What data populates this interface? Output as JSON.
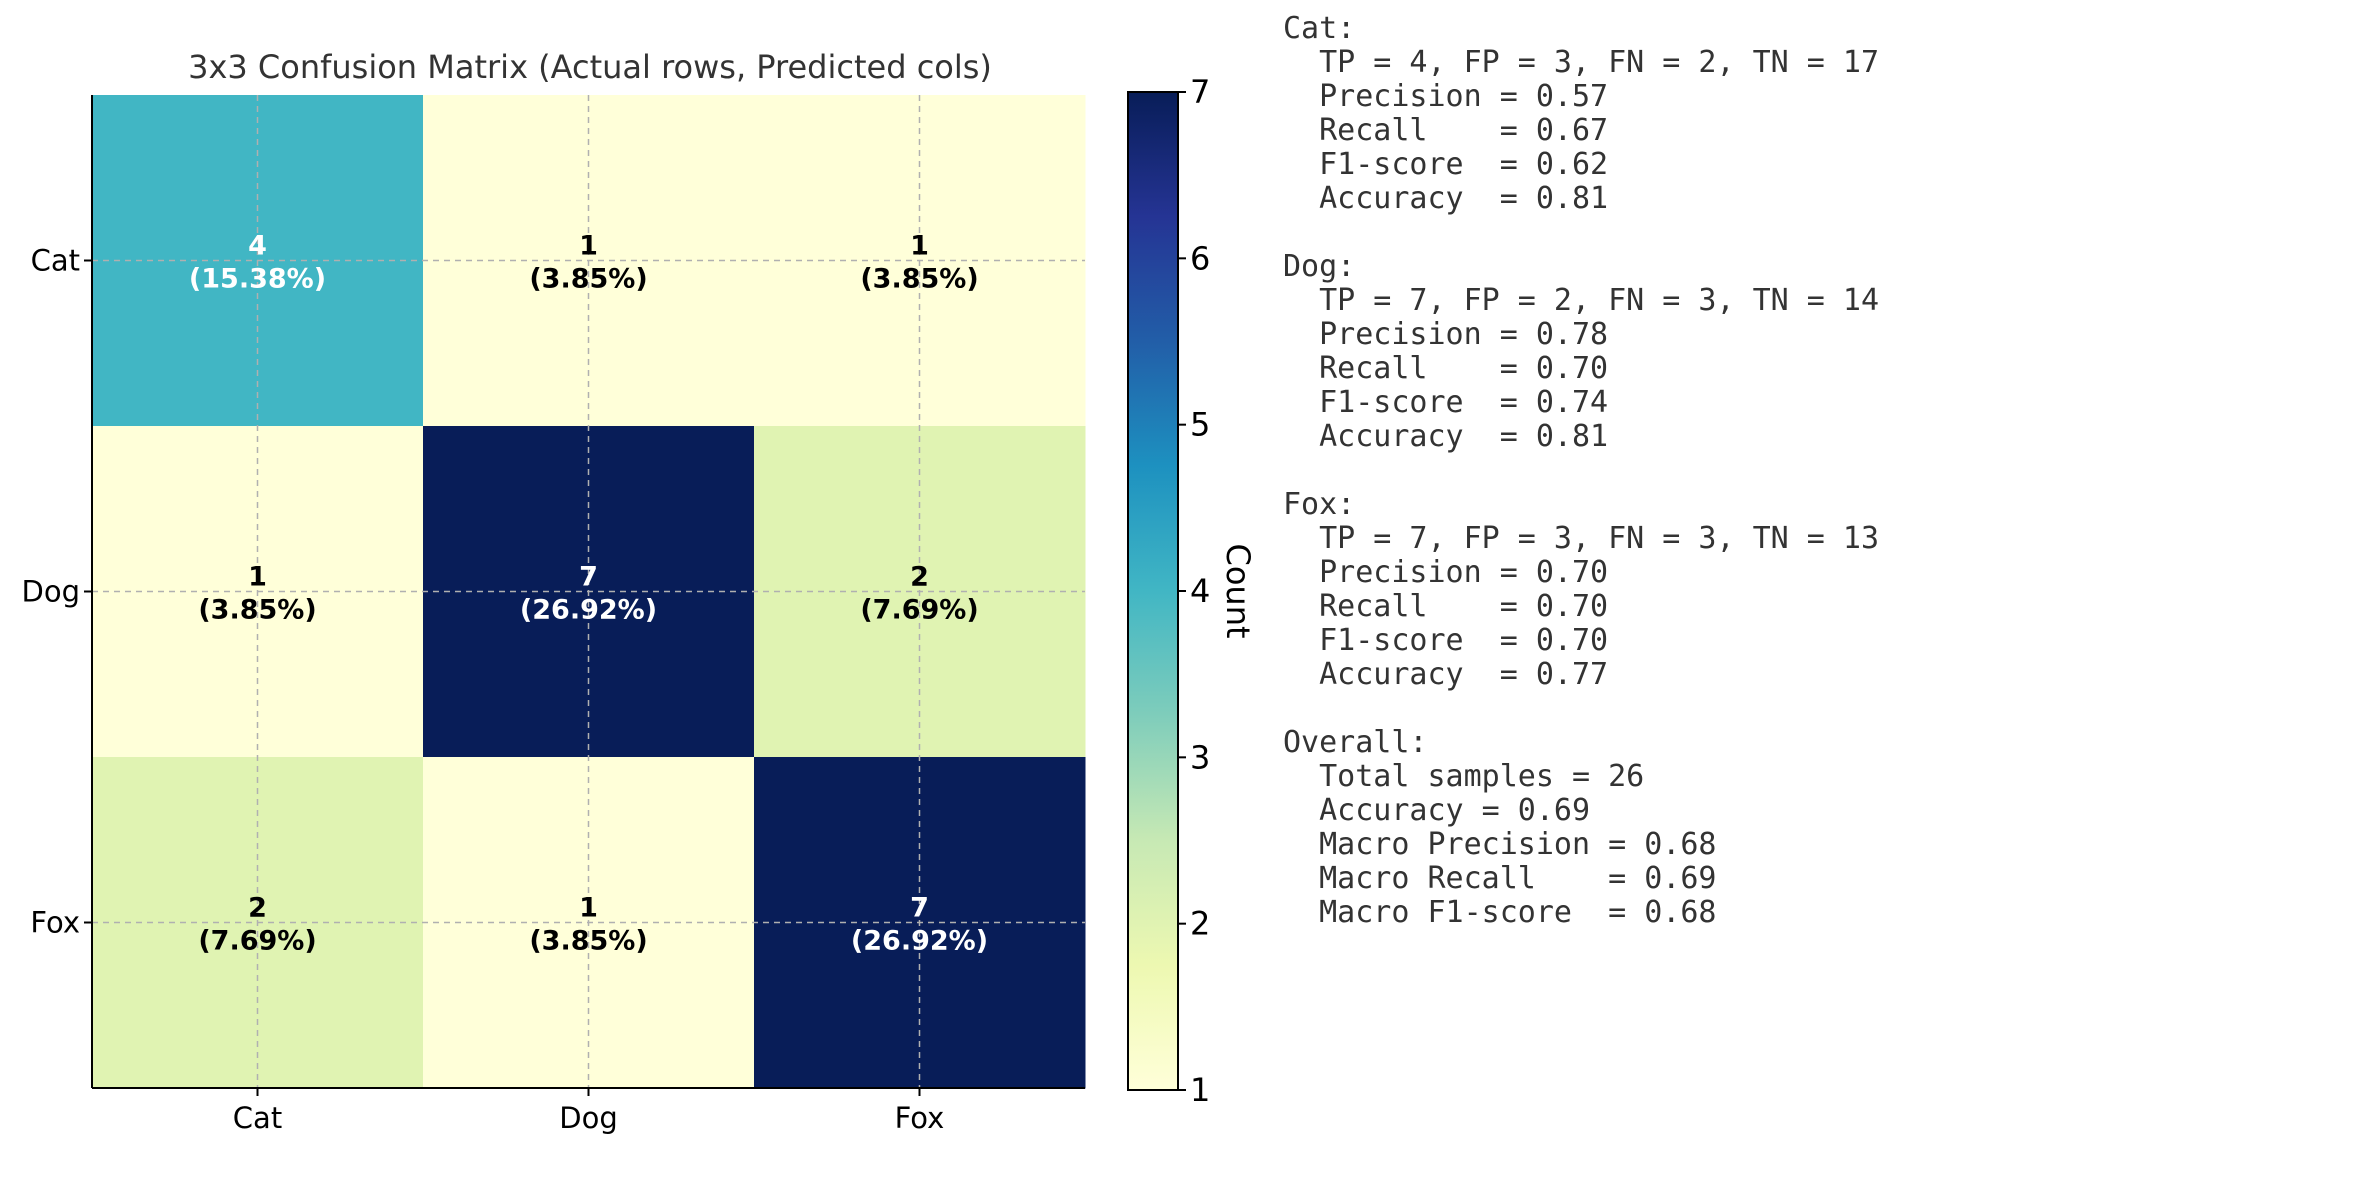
{
  "chart_data": {
    "type": "heatmap",
    "title": "3x3 Confusion Matrix (Actual rows, Predicted cols)",
    "row_labels": [
      "Cat",
      "Dog",
      "Fox"
    ],
    "col_labels": [
      "Cat",
      "Dog",
      "Fox"
    ],
    "values": [
      [
        4,
        1,
        1
      ],
      [
        1,
        7,
        2
      ],
      [
        2,
        1,
        7
      ]
    ],
    "cell_labels": [
      [
        [
          "4",
          "(15.38%)"
        ],
        [
          "1",
          "(3.85%)"
        ],
        [
          "1",
          "(3.85%)"
        ]
      ],
      [
        [
          "1",
          "(3.85%)"
        ],
        [
          "7",
          "(26.92%)"
        ],
        [
          "2",
          "(7.69%)"
        ]
      ],
      [
        [
          "2",
          "(7.69%)"
        ],
        [
          "1",
          "(3.85%)"
        ],
        [
          "7",
          "(26.92%)"
        ]
      ]
    ],
    "colormap": "YlGnBu",
    "colorbar": {
      "label": "Count",
      "range": [
        1,
        7
      ],
      "ticks": [
        1,
        2,
        3,
        4,
        5,
        6,
        7
      ],
      "stops": [
        "#ffffd9",
        "#edf8b1",
        "#c7e9b4",
        "#7fcdbb",
        "#41b6c4",
        "#1d91c0",
        "#225ea8",
        "#253494",
        "#081d58"
      ]
    },
    "grid": true
  },
  "metrics_text": [
    "Cat:",
    "  TP = 4, FP = 3, FN = 2, TN = 17",
    "  Precision = 0.57",
    "  Recall    = 0.67",
    "  F1-score  = 0.62",
    "  Accuracy  = 0.81",
    "",
    "Dog:",
    "  TP = 7, FP = 2, FN = 3, TN = 14",
    "  Precision = 0.78",
    "  Recall    = 0.70",
    "  F1-score  = 0.74",
    "  Accuracy  = 0.81",
    "",
    "Fox:",
    "  TP = 7, FP = 3, FN = 3, TN = 13",
    "  Precision = 0.70",
    "  Recall    = 0.70",
    "  F1-score  = 0.70",
    "  Accuracy  = 0.77",
    "",
    "Overall:",
    "  Total samples = 26",
    "  Accuracy = 0.69",
    "  Macro Precision = 0.68",
    "  Macro Recall    = 0.69",
    "  Macro F1-score  = 0.68"
  ]
}
